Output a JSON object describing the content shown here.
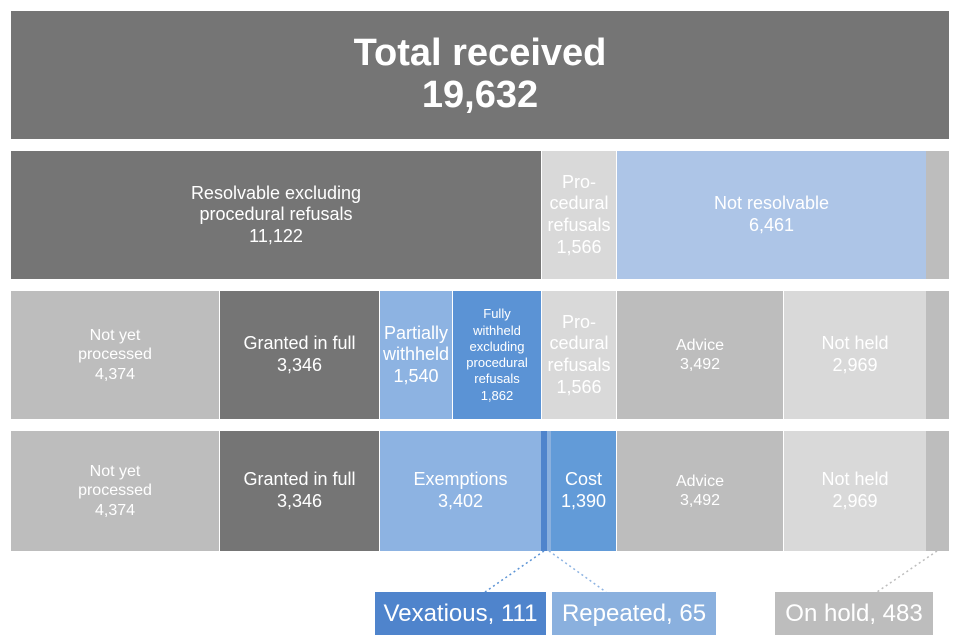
{
  "total": {
    "label": "Total received",
    "value": "19,632"
  },
  "row1": {
    "resolvable": {
      "label_line1": "Resolvable excluding",
      "label_line2": "procedural refusals",
      "value": "11,122"
    },
    "procedural": {
      "label_line1": "Pro-",
      "label_line2": "cedural",
      "label_line3": "refusals",
      "value": "1,566"
    },
    "not_resolvable": {
      "label": "Not resolvable",
      "value": "6,461"
    }
  },
  "row2": {
    "not_yet": {
      "label_line1": "Not yet",
      "label_line2": "processed",
      "value": "4,374"
    },
    "granted": {
      "label": "Granted in full",
      "value": "3,346"
    },
    "partially": {
      "label_line1": "Partially",
      "label_line2": "withheld",
      "value": "1,540"
    },
    "fully": {
      "label_line1": "Fully",
      "label_line2": "withheld",
      "label_line3": "excluding",
      "label_line4": "procedural",
      "label_line5": "refusals",
      "value": "1,862"
    },
    "procedural": {
      "label_line1": "Pro-",
      "label_line2": "cedural",
      "label_line3": "refusals",
      "value": "1,566"
    },
    "advice": {
      "label": "Advice",
      "value": "3,492"
    },
    "not_held": {
      "label": "Not held",
      "value": "2,969"
    }
  },
  "row3": {
    "not_yet": {
      "label_line1": "Not yet",
      "label_line2": "processed",
      "value": "4,374"
    },
    "granted": {
      "label": "Granted in full",
      "value": "3,346"
    },
    "exemptions": {
      "label": "Exemptions",
      "value": "3,402"
    },
    "cost": {
      "label": "Cost",
      "value": "1,390"
    },
    "advice": {
      "label": "Advice",
      "value": "3,492"
    },
    "not_held": {
      "label": "Not held",
      "value": "2,969"
    }
  },
  "callouts": {
    "vexatious": "Vexatious, 111",
    "repeated": "Repeated, 65",
    "on_hold": "On hold, 483"
  },
  "colors": {
    "dark_grey": "#757575",
    "mid_grey": "#bdbdbd",
    "light_grey": "#d9d9d9",
    "light_blue": "#adc5e7",
    "blue": "#8db3e2",
    "dark_blue": "#5b93d5"
  }
}
